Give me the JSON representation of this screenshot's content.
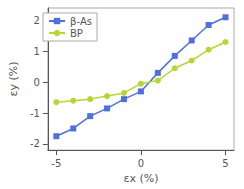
{
  "chart_data": {
    "type": "line",
    "xlabel": "εx (%)",
    "ylabel": "εy (%)",
    "x": [
      -5,
      -4,
      -3,
      -2,
      -1,
      0,
      1,
      2,
      3,
      4,
      5
    ],
    "series": [
      {
        "name": "β-As",
        "marker": "square",
        "values": [
          -1.75,
          -1.5,
          -1.1,
          -0.85,
          -0.55,
          -0.3,
          0.3,
          0.85,
          1.35,
          1.85,
          2.1
        ]
      },
      {
        "name": "BP",
        "marker": "circle",
        "values": [
          -0.65,
          -0.6,
          -0.55,
          -0.45,
          -0.35,
          -0.05,
          0.05,
          0.45,
          0.7,
          1.05,
          1.3
        ]
      }
    ],
    "xlim": [
      -5.5,
      5.5
    ],
    "ylim": [
      -2.2,
      2.4
    ],
    "xticks": [
      -5,
      0,
      5
    ],
    "yticks": [
      -2,
      -1,
      0,
      1,
      2
    ],
    "grid": false,
    "legend": "upper left"
  }
}
